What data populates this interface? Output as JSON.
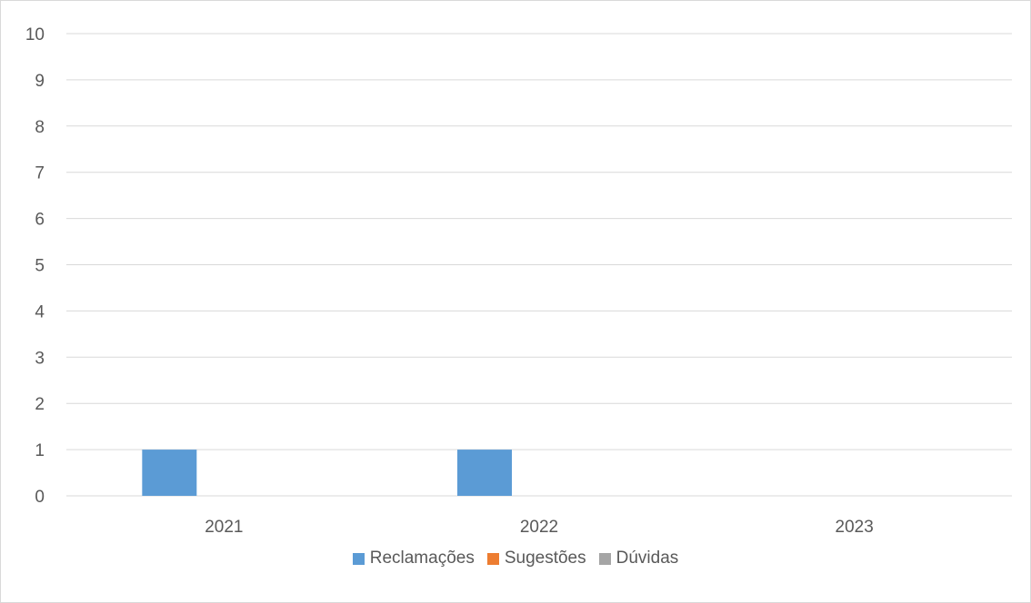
{
  "chart_data": {
    "type": "bar",
    "categories": [
      "2021",
      "2022",
      "2023"
    ],
    "series": [
      {
        "name": "Reclamações",
        "values": [
          1,
          1,
          0
        ],
        "color": "#5b9bd5"
      },
      {
        "name": "Sugestões",
        "values": [
          0,
          0,
          0
        ],
        "color": "#ed7d31"
      },
      {
        "name": "Dúvidas",
        "values": [
          0,
          0,
          0
        ],
        "color": "#a5a5a5"
      }
    ],
    "yticks": [
      "0",
      "1",
      "2",
      "3",
      "4",
      "5",
      "6",
      "7",
      "8",
      "9",
      "10"
    ],
    "ylim": [
      0,
      10
    ],
    "grid": true,
    "legend_position": "bottom",
    "title": "",
    "xlabel": "",
    "ylabel": ""
  }
}
